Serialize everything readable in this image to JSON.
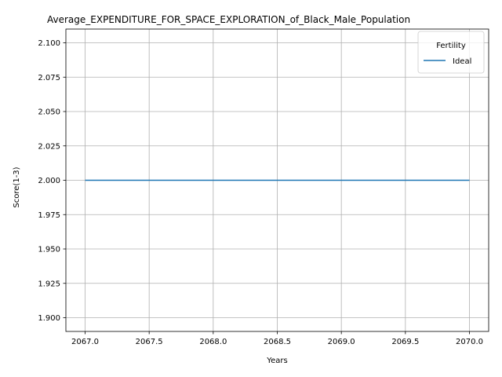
{
  "chart_data": {
    "type": "line",
    "title": "Average_EXPENDITURE_FOR_SPACE_EXPLORATION_of_Black_Male_Population",
    "xlabel": "Years",
    "ylabel": "Score(1-3)",
    "x": [
      2067,
      2068,
      2069,
      2070
    ],
    "series": [
      {
        "name": "Ideal",
        "color": "#1f77b4",
        "values": [
          2.0,
          2.0,
          2.0,
          2.0
        ]
      }
    ],
    "xlim": [
      2066.85,
      2070.15
    ],
    "ylim": [
      1.89,
      2.11
    ],
    "xticks": [
      2067.0,
      2067.5,
      2068.0,
      2068.5,
      2069.0,
      2069.5,
      2070.0
    ],
    "xtick_labels": [
      "2067.0",
      "2067.5",
      "2068.0",
      "2068.5",
      "2069.0",
      "2069.5",
      "2070.0"
    ],
    "yticks": [
      1.9,
      1.925,
      1.95,
      1.975,
      2.0,
      2.025,
      2.05,
      2.075,
      2.1
    ],
    "ytick_labels": [
      "1.900",
      "1.925",
      "1.950",
      "1.975",
      "2.000",
      "2.025",
      "2.050",
      "2.075",
      "2.100"
    ],
    "grid": true,
    "legend": {
      "title": "Fertility",
      "placement": "upper right"
    }
  }
}
